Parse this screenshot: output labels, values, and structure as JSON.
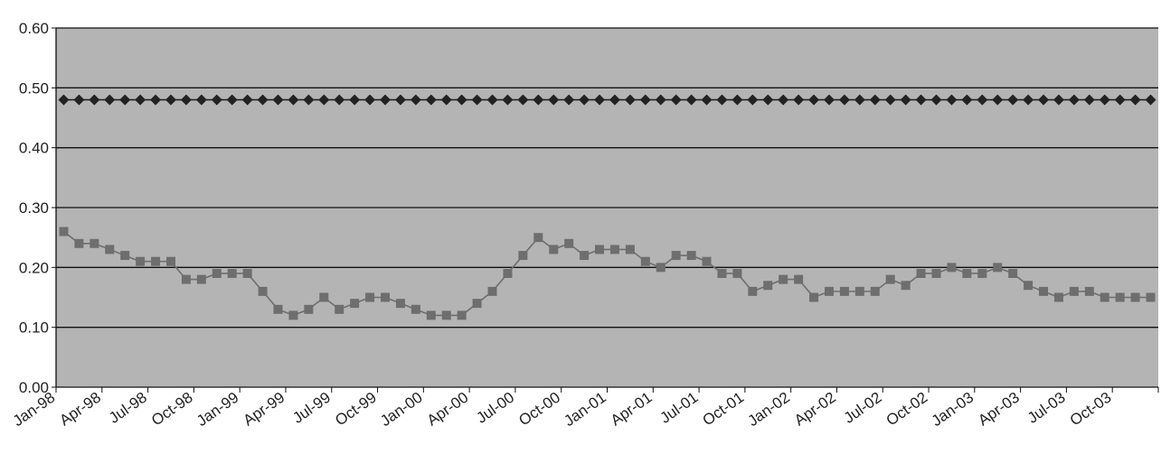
{
  "chart_data": {
    "type": "line",
    "title": "",
    "xlabel": "",
    "ylabel": "",
    "ylim": [
      0,
      0.6
    ],
    "y_ticks": [
      "0.00",
      "0.10",
      "0.20",
      "0.30",
      "0.40",
      "0.50",
      "0.60"
    ],
    "x_tick_labels": [
      "Jan-98",
      "Apr-98",
      "Jul-98",
      "Oct-98",
      "Jan-99",
      "Apr-99",
      "Jul-99",
      "Oct-99",
      "Jan-00",
      "Apr-00",
      "Jul-00",
      "Oct-00",
      "Jan-01",
      "Apr-01",
      "Jul-01",
      "Oct-01",
      "Jan-02",
      "Apr-02",
      "Jul-02",
      "Oct-02",
      "Jan-03",
      "Apr-03",
      "Jul-03",
      "Oct-03"
    ],
    "grid": true,
    "plot_background": "#b4b4b4",
    "series": [
      {
        "marker": "diamond",
        "color": "#222222",
        "values": [
          0.48,
          0.48,
          0.48,
          0.48,
          0.48,
          0.48,
          0.48,
          0.48,
          0.48,
          0.48,
          0.48,
          0.48,
          0.48,
          0.48,
          0.48,
          0.48,
          0.48,
          0.48,
          0.48,
          0.48,
          0.48,
          0.48,
          0.48,
          0.48,
          0.48,
          0.48,
          0.48,
          0.48,
          0.48,
          0.48,
          0.48,
          0.48,
          0.48,
          0.48,
          0.48,
          0.48,
          0.48,
          0.48,
          0.48,
          0.48,
          0.48,
          0.48,
          0.48,
          0.48,
          0.48,
          0.48,
          0.48,
          0.48,
          0.48,
          0.48,
          0.48,
          0.48,
          0.48,
          0.48,
          0.48,
          0.48,
          0.48,
          0.48,
          0.48,
          0.48,
          0.48,
          0.48,
          0.48,
          0.48,
          0.48,
          0.48,
          0.48,
          0.48,
          0.48,
          0.48,
          0.48,
          0.48
        ]
      },
      {
        "marker": "square",
        "color": "#6e6e6e",
        "values": [
          0.26,
          0.24,
          0.24,
          0.23,
          0.22,
          0.21,
          0.21,
          0.21,
          0.18,
          0.18,
          0.19,
          0.19,
          0.19,
          0.16,
          0.13,
          0.12,
          0.13,
          0.15,
          0.13,
          0.14,
          0.15,
          0.15,
          0.14,
          0.13,
          0.12,
          0.12,
          0.12,
          0.14,
          0.16,
          0.19,
          0.22,
          0.25,
          0.23,
          0.24,
          0.22,
          0.23,
          0.23,
          0.23,
          0.21,
          0.2,
          0.22,
          0.22,
          0.21,
          0.19,
          0.19,
          0.16,
          0.17,
          0.18,
          0.18,
          0.15,
          0.16,
          0.16,
          0.16,
          0.16,
          0.18,
          0.17,
          0.19,
          0.19,
          0.2,
          0.19,
          0.19,
          0.2,
          0.19,
          0.17,
          0.16,
          0.15,
          0.16,
          0.16,
          0.15,
          0.15,
          0.15,
          0.15
        ]
      }
    ]
  }
}
